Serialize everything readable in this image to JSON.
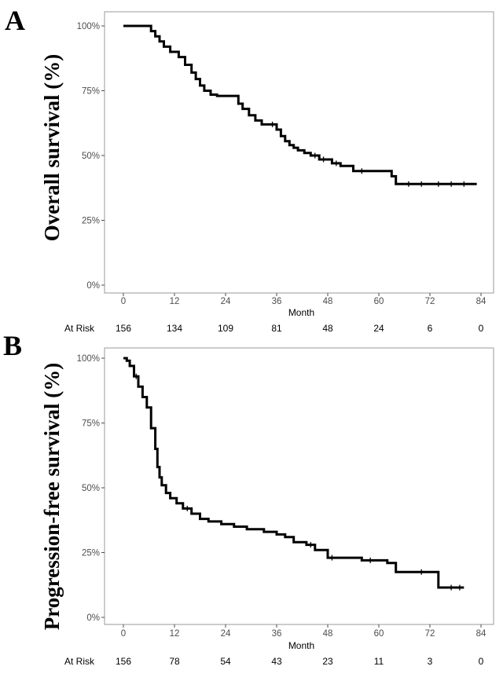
{
  "chart_data": [
    {
      "type": "line",
      "panel_label": "A",
      "ylabel": "Overall survival  (%)",
      "xlabel": "Month",
      "xlim": [
        0,
        84
      ],
      "ylim": [
        0,
        100
      ],
      "x_ticks": [
        "0",
        "12",
        "24",
        "36",
        "48",
        "60",
        "72",
        "84"
      ],
      "y_ticks": [
        "0%",
        "25%",
        "50%",
        "75%",
        "100%"
      ],
      "at_risk_label": "At Risk",
      "at_risk": [
        "156",
        "134",
        "109",
        "81",
        "48",
        "24",
        "6",
        "0"
      ],
      "series": [
        {
          "name": "Overall survival",
          "x": [
            0,
            5.5,
            6.5,
            7.5,
            8.5,
            9.5,
            11,
            13,
            14.5,
            16,
            17,
            18,
            19,
            20.5,
            22,
            25.5,
            27,
            28,
            29.5,
            31,
            32.5,
            36,
            37,
            38,
            39,
            40,
            41,
            42.5,
            44,
            46,
            49,
            51,
            54,
            58,
            63,
            64,
            83
          ],
          "y": [
            100,
            100,
            98,
            96,
            94,
            92,
            90,
            88,
            85,
            82,
            79.5,
            77,
            75,
            73.5,
            73,
            73,
            70,
            68,
            65.5,
            63.5,
            62,
            60,
            57.5,
            55.5,
            54,
            53,
            52,
            51,
            50,
            48.5,
            47,
            46,
            44,
            44,
            42,
            39,
            39
          ]
        }
      ],
      "censor_x": [
        35,
        45,
        47,
        50,
        56,
        67,
        70,
        74,
        77,
        80
      ]
    },
    {
      "type": "line",
      "panel_label": "B",
      "ylabel": "Progression-free survival (%)",
      "xlabel": "Month",
      "xlim": [
        0,
        84
      ],
      "ylim": [
        0,
        100
      ],
      "x_ticks": [
        "0",
        "12",
        "24",
        "36",
        "48",
        "60",
        "72",
        "84"
      ],
      "y_ticks": [
        "0%",
        "25%",
        "50%",
        "75%",
        "100%"
      ],
      "at_risk_label": "At Risk",
      "at_risk": [
        "156",
        "78",
        "54",
        "43",
        "23",
        "11",
        "3",
        "0"
      ],
      "series": [
        {
          "name": "Progression-free survival",
          "x": [
            0,
            0.8,
            1.5,
            2.5,
            3.5,
            4.5,
            5.5,
            6.5,
            7.5,
            8,
            8.5,
            9,
            10,
            11,
            12.5,
            14,
            16,
            18,
            20,
            23,
            26,
            29,
            33,
            36,
            38,
            40,
            43,
            45,
            48,
            56,
            62,
            64,
            74,
            80
          ],
          "y": [
            100,
            99,
            97,
            93,
            89,
            85,
            81,
            73,
            65,
            58,
            54,
            51,
            48,
            46,
            44,
            42,
            40,
            38,
            37,
            36,
            35,
            34,
            33,
            32,
            31,
            29,
            28,
            26,
            23,
            22,
            21,
            17.5,
            11.5,
            11.5
          ]
        }
      ],
      "censor_x": [
        3,
        15,
        44,
        49,
        58,
        70,
        77,
        79
      ]
    }
  ]
}
